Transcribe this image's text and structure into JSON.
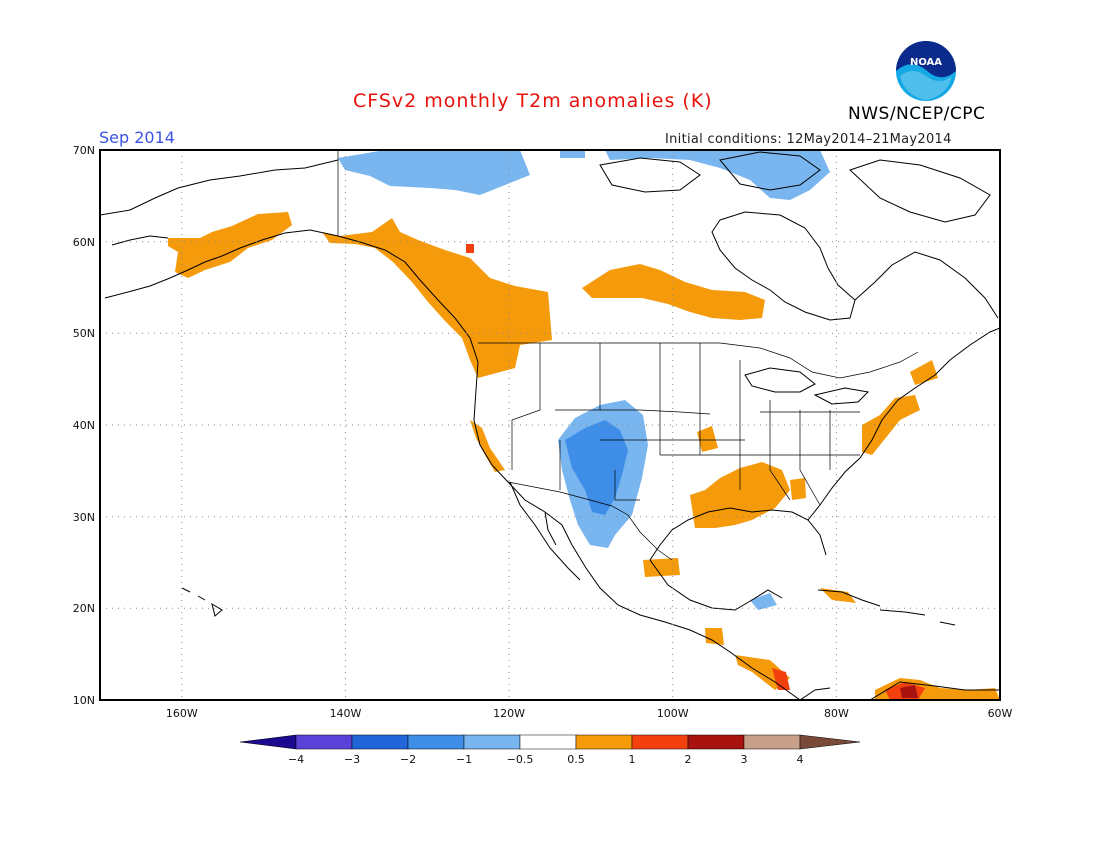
{
  "title": "CFSv2 monthly T2m anomalies (K)",
  "forecast_month": "Sep 2014",
  "initial_conditions": "Initial conditions: 12May2014–21May2014",
  "agency": "NWS/NCEP/CPC",
  "logo_text": "NOAA",
  "lat_labels": [
    "70N",
    "60N",
    "50N",
    "40N",
    "30N",
    "20N",
    "10N"
  ],
  "lon_labels": [
    "160W",
    "140W",
    "120W",
    "100W",
    "80W",
    "60W"
  ],
  "colorbar": {
    "tick_labels": [
      "−4",
      "−3",
      "−2",
      "−1",
      "−0.5",
      "0.5",
      "1",
      "2",
      "3",
      "4"
    ],
    "colors": [
      "#1c0b8f",
      "#5a42d8",
      "#2166d8",
      "#3e8ee8",
      "#79b6f0",
      "#ffffff",
      "#f59a0a",
      "#f2400f",
      "#a8120f",
      "#c8a08a",
      "#7a4a38"
    ]
  },
  "anomaly_colors": {
    "cold_weak": "#79b6f0",
    "cold_mid": "#3e8ee8",
    "warm_weak": "#f59a0a",
    "warm_mid": "#f2400f",
    "warm_strong": "#a8120f"
  }
}
